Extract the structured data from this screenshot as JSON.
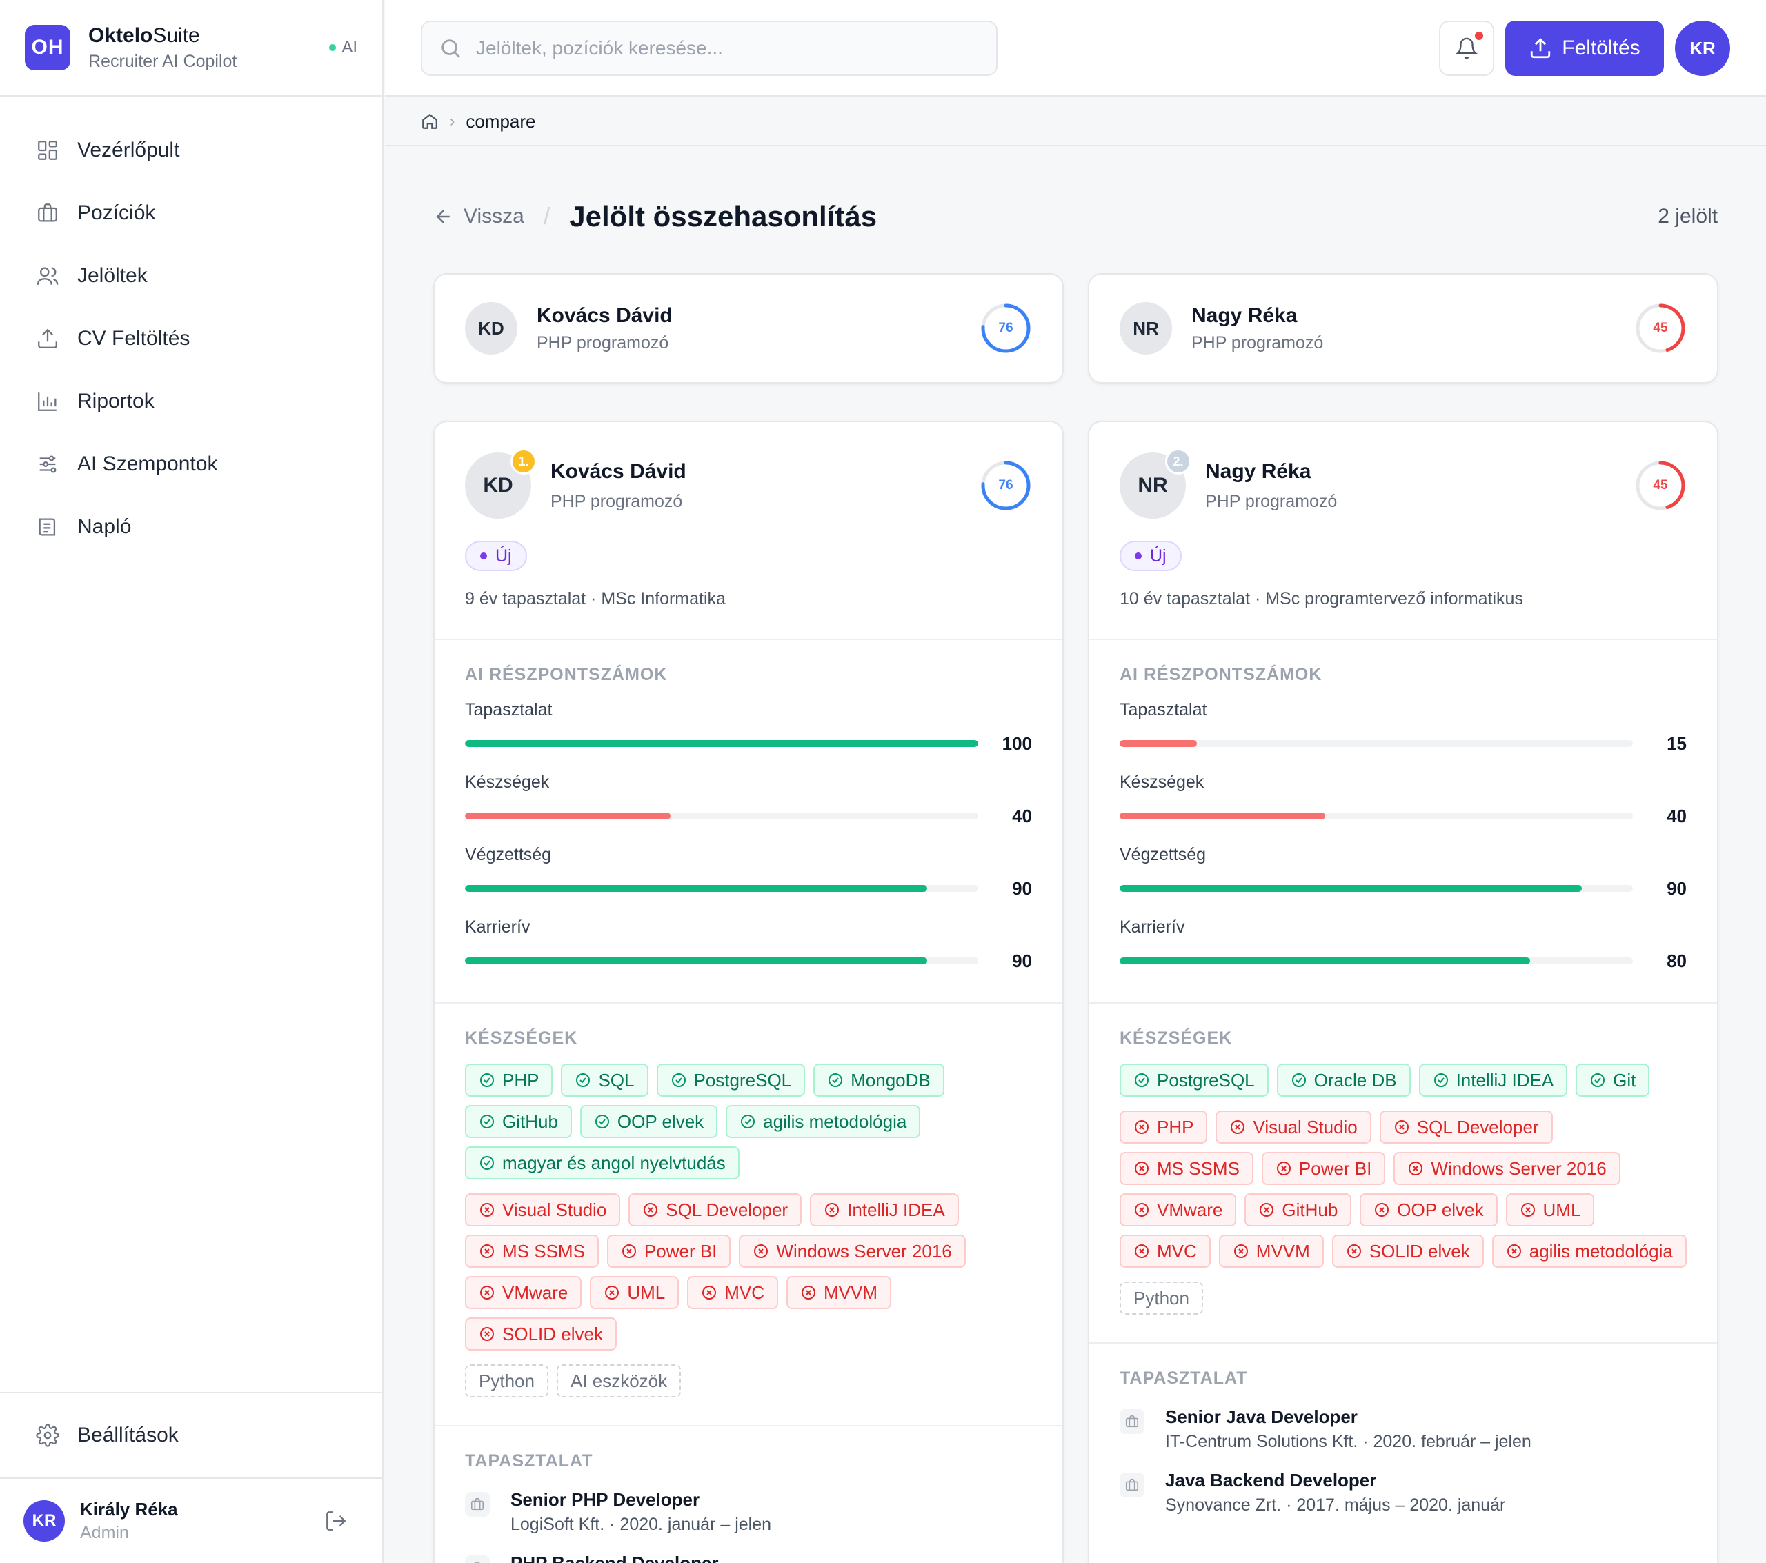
{
  "brand": {
    "logo": "OH",
    "name_bold": "Oktelo",
    "name_rest": "Suite",
    "subtitle": "Recruiter AI Copilot",
    "ai_badge": "AI"
  },
  "nav": [
    {
      "label": "Vezérlőpult",
      "icon": "grid-icon"
    },
    {
      "label": "Pozíciók",
      "icon": "briefcase-icon"
    },
    {
      "label": "Jelöltek",
      "icon": "users-icon"
    },
    {
      "label": "CV Feltöltés",
      "icon": "upload-icon"
    },
    {
      "label": "Riportok",
      "icon": "bar-chart-icon"
    },
    {
      "label": "AI Szempontok",
      "icon": "sliders-icon"
    },
    {
      "label": "Napló",
      "icon": "log-icon"
    }
  ],
  "settings_label": "Beállítások",
  "user": {
    "initials": "KR",
    "name": "Király Réka",
    "role": "Admin"
  },
  "header": {
    "search_placeholder": "Jelöltek, pozíciók keresése...",
    "upload_label": "Feltöltés",
    "avatar": "KR"
  },
  "breadcrumb": {
    "current": "compare"
  },
  "page": {
    "back_label": "Vissza",
    "title": "Jelölt összehasonlítás",
    "count": "2 jelölt"
  },
  "colors": {
    "accent": "#4f46e5",
    "score_blue": "#3b82f6",
    "score_red": "#ef4444",
    "bar_green": "#10b981",
    "bar_red": "#f87171",
    "rank_gold": "#fbbf24",
    "rank_silver": "#cbd5e1"
  },
  "labels": {
    "scores_title": "AI RÉSZPONTSZÁMOK",
    "skills_title": "KÉSZSÉGEK",
    "experience_title": "TAPASZTALAT"
  },
  "candidates": [
    {
      "initials": "KD",
      "name": "Kovács Dávid",
      "position": "PHP programozó",
      "score": 76,
      "rank": "1.",
      "status": "Új",
      "meta": "9 év tapasztalat · MSc Informatika",
      "scores": [
        {
          "label": "Tapasztalat",
          "value": 100
        },
        {
          "label": "Készségek",
          "value": 40
        },
        {
          "label": "Végzettség",
          "value": 90
        },
        {
          "label": "Karrierív",
          "value": 90
        }
      ],
      "skills_matched": [
        "PHP",
        "SQL",
        "PostgreSQL",
        "MongoDB",
        "GitHub",
        "OOP elvek",
        "agilis metodológia",
        "magyar és angol nyelvtudás"
      ],
      "skills_missing": [
        "Visual Studio",
        "SQL Developer",
        "IntelliJ IDEA",
        "MS SSMS",
        "Power BI",
        "Windows Server 2016",
        "VMware",
        "UML",
        "MVC",
        "MVVM",
        "SOLID elvek"
      ],
      "skills_extra": [
        "Python",
        "AI eszközök"
      ],
      "experience": [
        {
          "title": "Senior PHP Developer",
          "sub": "LogiSoft Kft. · 2020. január – jelen"
        },
        {
          "title": "PHP Backend Developer",
          "sub": ""
        }
      ]
    },
    {
      "initials": "NR",
      "name": "Nagy Réka",
      "position": "PHP programozó",
      "score": 45,
      "rank": "2.",
      "status": "Új",
      "meta": "10 év tapasztalat · MSc programtervező informatikus",
      "scores": [
        {
          "label": "Tapasztalat",
          "value": 15
        },
        {
          "label": "Készségek",
          "value": 40
        },
        {
          "label": "Végzettség",
          "value": 90
        },
        {
          "label": "Karrierív",
          "value": 80
        }
      ],
      "skills_matched": [
        "PostgreSQL",
        "Oracle DB",
        "IntelliJ IDEA",
        "Git"
      ],
      "skills_missing": [
        "PHP",
        "Visual Studio",
        "SQL Developer",
        "MS SSMS",
        "Power BI",
        "Windows Server 2016",
        "VMware",
        "GitHub",
        "OOP elvek",
        "UML",
        "MVC",
        "MVVM",
        "SOLID elvek",
        "agilis metodológia"
      ],
      "skills_extra": [
        "Python"
      ],
      "experience": [
        {
          "title": "Senior Java Developer",
          "sub": "IT-Centrum Solutions Kft. · 2020. február – jelen"
        },
        {
          "title": "Java Backend Developer",
          "sub": "Synovance Zrt. · 2017. május – 2020. január"
        }
      ]
    }
  ]
}
